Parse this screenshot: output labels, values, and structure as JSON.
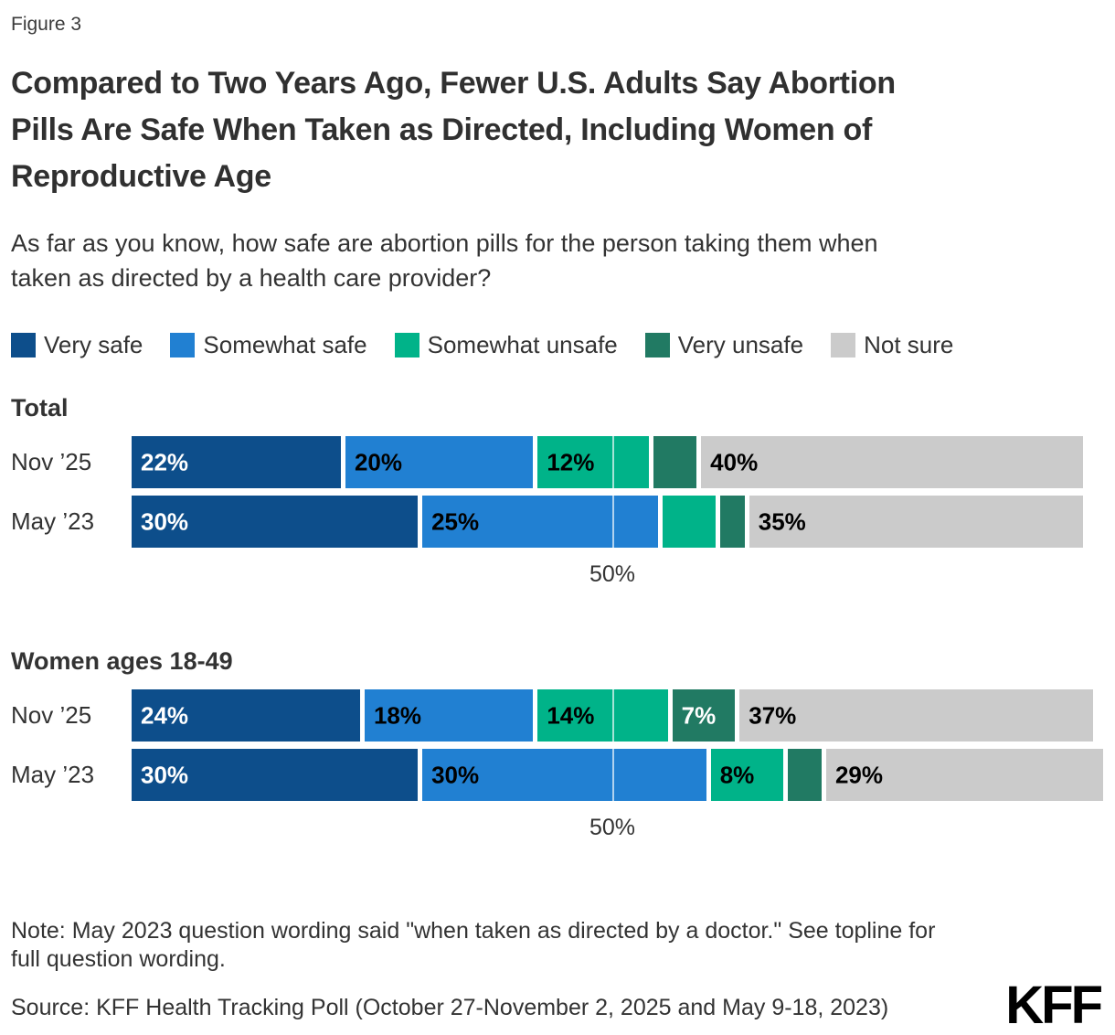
{
  "figure_label": "Figure 3",
  "title": "Compared to Two Years Ago, Fewer U.S. Adults Say Abortion\nPills Are Safe When Taken as Directed, Including Women of\nReproductive Age",
  "subtitle": "As far as you know, how safe are abortion pills for the person taking them when\ntaken as directed by a health care provider?",
  "legend": [
    {
      "label": "Very safe",
      "color": "#0d4e8b"
    },
    {
      "label": "Somewhat safe",
      "color": "#2180d2"
    },
    {
      "label": "Somewhat unsafe",
      "color": "#00b389"
    },
    {
      "label": "Very unsafe",
      "color": "#217a63"
    },
    {
      "label": "Not sure",
      "color": "#cbcbcb"
    }
  ],
  "chart_data": {
    "type": "bar",
    "orientation": "horizontal",
    "stacked": true,
    "xlim": [
      0,
      100
    ],
    "gridline_value": 50,
    "categories": [
      "Very safe",
      "Somewhat safe",
      "Somewhat unsafe",
      "Very unsafe",
      "Not sure"
    ],
    "palette": [
      "#0d4e8b",
      "#2180d2",
      "#00b389",
      "#217a63",
      "#cbcbcb"
    ],
    "label_colors": [
      "#ffffff",
      "#000000",
      "#000000",
      "#ffffff",
      "#000000"
    ],
    "groups": [
      {
        "name": "Total",
        "axis_tick_label": "50%",
        "rows": [
          {
            "label": "Nov ’25",
            "values": [
              22,
              20,
              12,
              5,
              40
            ],
            "labels_shown": [
              true,
              true,
              true,
              false,
              true
            ]
          },
          {
            "label": "May ’23",
            "values": [
              30,
              25,
              6,
              3,
              35
            ],
            "labels_shown": [
              true,
              true,
              false,
              false,
              true
            ]
          }
        ]
      },
      {
        "name": "Women ages 18-49",
        "axis_tick_label": "50%",
        "rows": [
          {
            "label": "Nov ’25",
            "values": [
              24,
              18,
              14,
              7,
              37
            ],
            "labels_shown": [
              true,
              true,
              true,
              true,
              true
            ]
          },
          {
            "label": "May ’23",
            "values": [
              30,
              30,
              8,
              4,
              29
            ],
            "labels_shown": [
              true,
              true,
              true,
              false,
              true
            ]
          }
        ]
      }
    ]
  },
  "note": "Note: May 2023 question wording said \"when taken as directed by a doctor.\" See topline for\nfull question wording.",
  "source": "Source: KFF Health Tracking Poll (October 27-November 2, 2025 and May 9-18, 2023)",
  "logo_text": "KFF"
}
